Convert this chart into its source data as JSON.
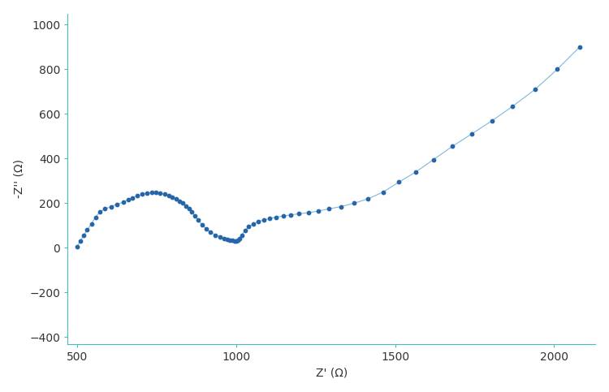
{
  "x": [
    500,
    510,
    520,
    532,
    545,
    558,
    572,
    588,
    607,
    625,
    645,
    660,
    675,
    690,
    705,
    720,
    735,
    748,
    762,
    775,
    788,
    800,
    812,
    822,
    833,
    843,
    852,
    861,
    870,
    880,
    893,
    906,
    920,
    935,
    950,
    963,
    972,
    980,
    988,
    995,
    1000,
    1005,
    1010,
    1018,
    1028,
    1040,
    1055,
    1070,
    1087,
    1105,
    1125,
    1148,
    1172,
    1198,
    1228,
    1258,
    1292,
    1330,
    1370,
    1415,
    1462,
    1512,
    1565,
    1620,
    1680,
    1740,
    1805,
    1870,
    1940,
    2010,
    2080
  ],
  "y": [
    5,
    30,
    55,
    80,
    108,
    138,
    162,
    175,
    185,
    195,
    205,
    215,
    225,
    233,
    240,
    245,
    248,
    248,
    245,
    240,
    235,
    228,
    220,
    210,
    200,
    188,
    175,
    160,
    145,
    125,
    105,
    85,
    70,
    58,
    50,
    42,
    38,
    35,
    33,
    32,
    32,
    35,
    42,
    58,
    78,
    95,
    108,
    118,
    125,
    132,
    138,
    143,
    148,
    153,
    158,
    165,
    175,
    185,
    200,
    220,
    250,
    295,
    340,
    395,
    455,
    510,
    570,
    635,
    710,
    800,
    900
  ],
  "line_color": "#7db8d8",
  "dot_color": "#2666a8",
  "xlabel": "Z' (Ω)",
  "ylabel": "-Z'' (Ω)",
  "xlim": [
    470,
    2130
  ],
  "ylim": [
    -430,
    1050
  ],
  "xticks": [
    500,
    1000,
    1500,
    2000
  ],
  "yticks": [
    -400,
    -200,
    0,
    200,
    400,
    600,
    800,
    1000
  ],
  "line_width": 0.8,
  "dot_size": 10,
  "background_color": "#ffffff",
  "spine_color": "#4bbcbc",
  "tick_color": "#4bbcbc",
  "label_fontsize": 10,
  "tick_fontsize": 10
}
